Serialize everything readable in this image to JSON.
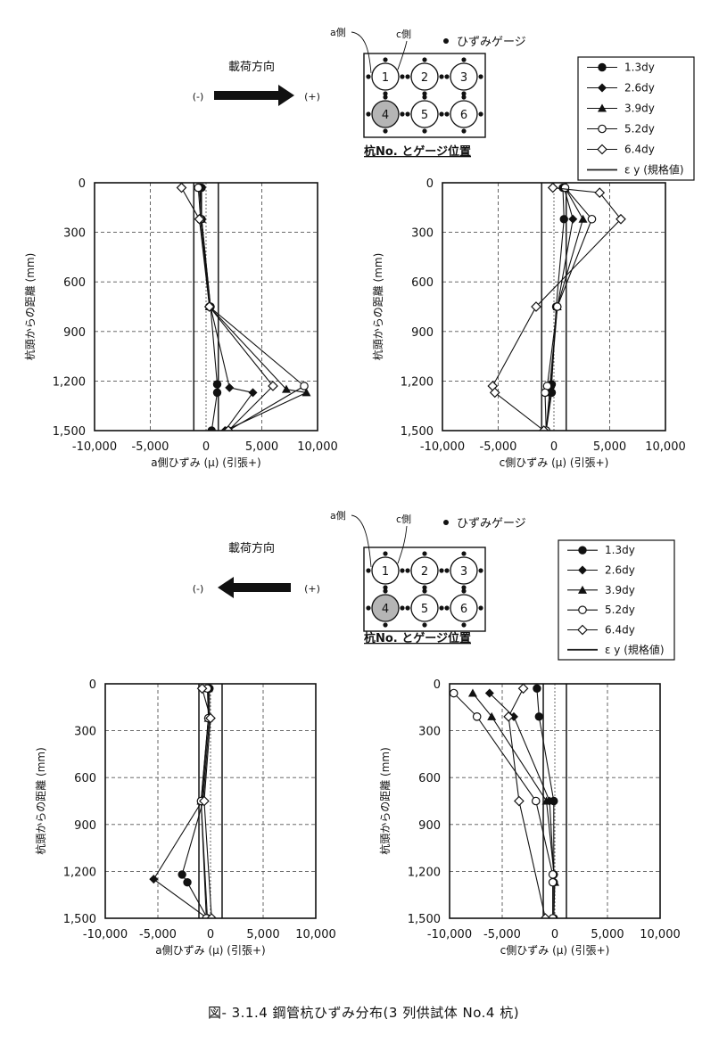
{
  "figure_caption": "図- 3.1.4 鋼管杭ひずみ分布(3 列供試体 No.4 杭)",
  "legend_title_note": "ひずみゲージ",
  "load_label": "載荷方向",
  "minus_label": "(-)",
  "plus_label": "(+)",
  "a_side_label": "a側",
  "c_side_label": "c側",
  "pile_map_caption": "杭No. とゲージ位置",
  "pile_numbers": [
    "1",
    "2",
    "3",
    "4",
    "5",
    "6"
  ],
  "legend_entries": [
    "1.3dy",
    "2.6dy",
    "3.9dy",
    "5.2dy",
    "6.4dy",
    "ε y (規格値)"
  ],
  "sections": [
    {
      "name": "top",
      "load_direction": "right",
      "legend_entries": [
        "1.3dy",
        "2.6dy",
        "3.9dy",
        "5.2dy",
        "6.4dy",
        "ε y (規格値)"
      ]
    },
    {
      "name": "bottom",
      "load_direction": "left",
      "legend_entries": [
        "1.3dy",
        "2.6dy",
        "3.9dy",
        "5.2dy",
        "6.4dy",
        "ε y (規格値)"
      ]
    }
  ],
  "chart_data": [
    {
      "type": "line",
      "id": "top-a",
      "xlabel": "a側ひずみ (μ) (引張+)",
      "ylabel": "杭頭からの距離 (mm)",
      "xlim": [
        -10000,
        10000
      ],
      "ylim": [
        0,
        1500
      ],
      "xticks": [
        "-10,000",
        "-5,000",
        "0",
        "5,000",
        "10,000"
      ],
      "yticks": [
        "0",
        "300",
        "600",
        "900",
        "1,200",
        "1,500"
      ],
      "epsilon_y": [
        -1100,
        1100
      ],
      "series": [
        {
          "name": "1.3dy",
          "marker": "circle-filled",
          "points": [
            [
              -400,
              30
            ],
            [
              -400,
              220
            ],
            [
              400,
              750
            ],
            [
              1000,
              1220
            ],
            [
              1000,
              1270
            ],
            [
              500,
              1500
            ]
          ]
        },
        {
          "name": "2.6dy",
          "marker": "diamond-filled",
          "points": [
            [
              -500,
              30
            ],
            [
              -400,
              220
            ],
            [
              400,
              750
            ],
            [
              2100,
              1240
            ],
            [
              4200,
              1270
            ],
            [
              1700,
              1500
            ]
          ]
        },
        {
          "name": "3.9dy",
          "marker": "triangle-filled",
          "points": [
            [
              -600,
              30
            ],
            [
              -400,
              220
            ],
            [
              300,
              750
            ],
            [
              7200,
              1250
            ],
            [
              9000,
              1270
            ],
            [
              1700,
              1500
            ]
          ]
        },
        {
          "name": "5.2dy",
          "marker": "circle-open",
          "points": [
            [
              -700,
              30
            ],
            [
              -500,
              220
            ],
            [
              300,
              750
            ],
            [
              8800,
              1230
            ],
            [
              2000,
              1500
            ]
          ]
        },
        {
          "name": "6.4dy",
          "marker": "diamond-open",
          "points": [
            [
              -2200,
              30
            ],
            [
              -600,
              220
            ],
            [
              300,
              750
            ],
            [
              6000,
              1230
            ],
            [
              2000,
              1500
            ]
          ]
        }
      ]
    },
    {
      "type": "line",
      "id": "top-c",
      "xlabel": "c側ひずみ (μ) (引張+)",
      "ylabel": "杭頭からの距離 (mm)",
      "xlim": [
        -10000,
        10000
      ],
      "ylim": [
        0,
        1500
      ],
      "xticks": [
        "-10,000",
        "-5,000",
        "0",
        "5,000",
        "10,000"
      ],
      "yticks": [
        "0",
        "300",
        "600",
        "900",
        "1,200",
        "1,500"
      ],
      "epsilon_y": [
        -1100,
        1100
      ],
      "series": [
        {
          "name": "1.3dy",
          "marker": "circle-filled",
          "points": [
            [
              800,
              30
            ],
            [
              900,
              220
            ],
            [
              200,
              750
            ],
            [
              -200,
              1220
            ],
            [
              -200,
              1270
            ],
            [
              -700,
              1500
            ]
          ]
        },
        {
          "name": "2.6dy",
          "marker": "diamond-filled",
          "points": [
            [
              900,
              30
            ],
            [
              1700,
              220
            ],
            [
              300,
              750
            ],
            [
              -300,
              1240
            ],
            [
              -300,
              1270
            ],
            [
              -700,
              1500
            ]
          ]
        },
        {
          "name": "3.9dy",
          "marker": "triangle-filled",
          "points": [
            [
              1000,
              30
            ],
            [
              2600,
              220
            ],
            [
              300,
              750
            ],
            [
              -400,
              1250
            ],
            [
              -400,
              1270
            ],
            [
              -700,
              1500
            ]
          ]
        },
        {
          "name": "5.2dy",
          "marker": "circle-open",
          "points": [
            [
              1000,
              30
            ],
            [
              3400,
              220
            ],
            [
              300,
              750
            ],
            [
              -600,
              1230
            ],
            [
              -800,
              1270
            ],
            [
              -700,
              1500
            ]
          ]
        },
        {
          "name": "6.4dy",
          "marker": "diamond-open",
          "points": [
            [
              -100,
              30
            ],
            [
              4100,
              60
            ],
            [
              6000,
              220
            ],
            [
              -1600,
              750
            ],
            [
              -5500,
              1230
            ],
            [
              -5300,
              1270
            ],
            [
              -900,
              1500
            ]
          ]
        }
      ]
    },
    {
      "type": "line",
      "id": "bottom-a",
      "xlabel": "a側ひずみ (μ) (引張+)",
      "ylabel": "杭頭からの距離 (mm)",
      "xlim": [
        -10000,
        10000
      ],
      "ylim": [
        0,
        1500
      ],
      "xticks": [
        "-10,000",
        "-5,000",
        "0",
        "5,000",
        "10,000"
      ],
      "yticks": [
        "0",
        "300",
        "600",
        "900",
        "1,200",
        "1,500"
      ],
      "epsilon_y": [
        -1100,
        1100
      ],
      "series": [
        {
          "name": "1.3dy",
          "marker": "circle-filled",
          "points": [
            [
              -100,
              30
            ],
            [
              -100,
              220
            ],
            [
              -700,
              750
            ],
            [
              -2700,
              1220
            ],
            [
              -2200,
              1270
            ],
            [
              -300,
              1500
            ]
          ]
        },
        {
          "name": "2.6dy",
          "marker": "diamond-filled",
          "points": [
            [
              -200,
              30
            ],
            [
              -200,
              220
            ],
            [
              -800,
              750
            ],
            [
              -5400,
              1250
            ],
            [
              -300,
              1500
            ]
          ]
        },
        {
          "name": "3.9dy",
          "marker": "triangle-filled",
          "points": [
            [
              -200,
              30
            ],
            [
              -200,
              220
            ],
            [
              -900,
              750
            ],
            [
              -300,
              1500
            ]
          ]
        },
        {
          "name": "5.2dy",
          "marker": "circle-open",
          "points": [
            [
              -300,
              30
            ],
            [
              -200,
              220
            ],
            [
              -900,
              750
            ],
            [
              -400,
              1500
            ]
          ]
        },
        {
          "name": "6.4dy",
          "marker": "diamond-open",
          "points": [
            [
              -800,
              30
            ],
            [
              0,
              220
            ],
            [
              -600,
              750
            ],
            [
              100,
              1500
            ]
          ]
        }
      ]
    },
    {
      "type": "line",
      "id": "bottom-c",
      "xlabel": "c側ひずみ (μ) (引張+)",
      "ylabel": "杭頭からの距離 (mm)",
      "xlim": [
        -10000,
        10000
      ],
      "ylim": [
        0,
        1500
      ],
      "xticks": [
        "-10,000",
        "-5,000",
        "0",
        "5,000",
        "10,000"
      ],
      "yticks": [
        "0",
        "300",
        "600",
        "900",
        "1,200",
        "1,500"
      ],
      "epsilon_y": [
        -1100,
        1100
      ],
      "series": [
        {
          "name": "1.3dy",
          "marker": "circle-filled",
          "points": [
            [
              -1700,
              30
            ],
            [
              -1500,
              210
            ],
            [
              -100,
              750
            ],
            [
              -100,
              1220
            ],
            [
              -100,
              1270
            ],
            [
              -100,
              1500
            ]
          ]
        },
        {
          "name": "2.6dy",
          "marker": "diamond-filled",
          "points": [
            [
              -6200,
              60
            ],
            [
              -3900,
              210
            ],
            [
              -500,
              750
            ],
            [
              -100,
              1220
            ],
            [
              -100,
              1500
            ]
          ]
        },
        {
          "name": "3.9dy",
          "marker": "triangle-filled",
          "points": [
            [
              -7800,
              60
            ],
            [
              -6000,
              210
            ],
            [
              -800,
              750
            ],
            [
              0,
              1270
            ],
            [
              -100,
              1500
            ]
          ]
        },
        {
          "name": "5.2dy",
          "marker": "circle-open",
          "points": [
            [
              -9600,
              60
            ],
            [
              -7400,
              210
            ],
            [
              -1800,
              750
            ],
            [
              -200,
              1220
            ],
            [
              -200,
              1270
            ],
            [
              -200,
              1500
            ]
          ]
        },
        {
          "name": "6.4dy",
          "marker": "diamond-open",
          "points": [
            [
              -3000,
              30
            ],
            [
              -4400,
              210
            ],
            [
              -3400,
              750
            ],
            [
              -900,
              1500
            ]
          ]
        }
      ]
    }
  ]
}
